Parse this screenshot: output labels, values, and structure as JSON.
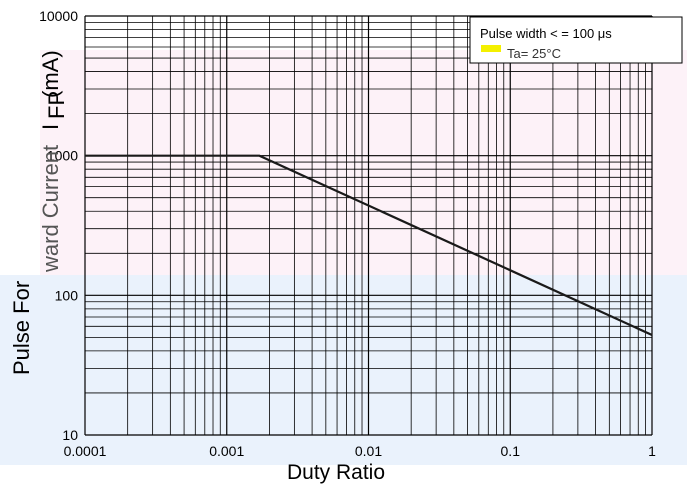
{
  "chart_data": {
    "type": "line",
    "xlabel": "Duty Ratio",
    "ylabel_parts": {
      "faded": "ward Current",
      "symbol": "I",
      "subscript": "FP",
      "unit": "(mA)",
      "bottom": "Pulse For"
    },
    "xscale": "log",
    "yscale": "log",
    "xlim": [
      0.0001,
      1
    ],
    "ylim": [
      10,
      10000
    ],
    "x_ticks": [
      "0.0001",
      "0.001",
      "0.01",
      "0.1",
      "1"
    ],
    "y_ticks": [
      "10",
      "100",
      "1000",
      "10000"
    ],
    "grid": true,
    "annotations": [
      "Pulse width < =  100 μs",
      "Ta= 25°C"
    ],
    "series": [
      {
        "x": [
          0.0001,
          0.0017,
          1
        ],
        "y": [
          1000,
          1000,
          52
        ],
        "color": "#1a1a1a"
      }
    ]
  },
  "colors": {
    "band_top": "#fdf2f8",
    "band_bottom": "#eaf2fc",
    "grid": "#000000",
    "curve": "#1a1a1a",
    "glitch_yellow": "#f4f000"
  }
}
